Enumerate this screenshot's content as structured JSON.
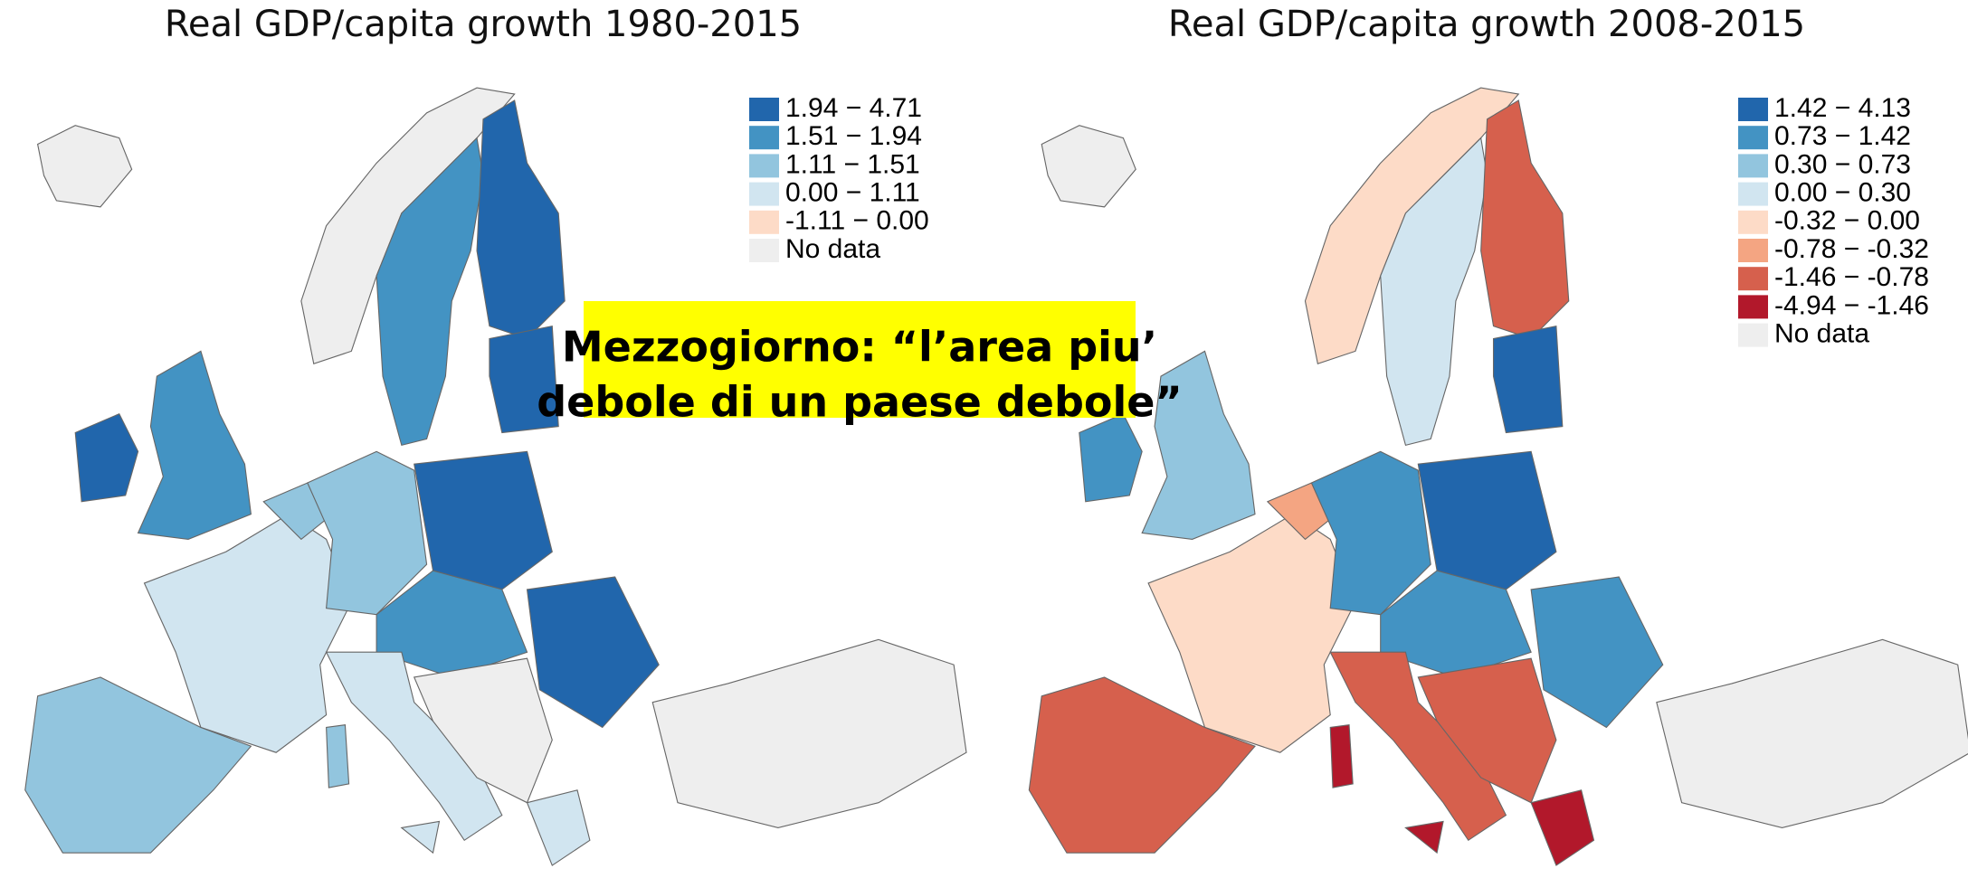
{
  "maps": [
    {
      "title": "Real GDP/capita growth 1980-2015",
      "legend": [
        {
          "label": "1.94 − 4.71",
          "color": "#2166ac"
        },
        {
          "label": "1.51 − 1.94",
          "color": "#4393c3"
        },
        {
          "label": "1.11 − 1.51",
          "color": "#92c5de"
        },
        {
          "label": "0.00 − 1.11",
          "color": "#d1e5f0"
        },
        {
          "label": "-1.11 − 0.00",
          "color": "#fddbc7"
        },
        {
          "label": "No data",
          "color": "#eeeeee"
        }
      ]
    },
    {
      "title": "Real GDP/capita growth 2008-2015",
      "legend": [
        {
          "label": "1.42 − 4.13",
          "color": "#2166ac"
        },
        {
          "label": "0.73 − 1.42",
          "color": "#4393c3"
        },
        {
          "label": "0.30 − 0.73",
          "color": "#92c5de"
        },
        {
          "label": "0.00 − 0.30",
          "color": "#d1e5f0"
        },
        {
          "label": "-0.32 − 0.00",
          "color": "#fddbc7"
        },
        {
          "label": "-0.78 − -0.32",
          "color": "#f4a582"
        },
        {
          "label": "-1.46 − -0.78",
          "color": "#d6604d"
        },
        {
          "label": "-4.94 − -1.46",
          "color": "#b2182b"
        },
        {
          "label": "No data",
          "color": "#eeeeee"
        }
      ]
    }
  ],
  "callout": {
    "lines": [
      "Mezzogiorno: “l’area piu’",
      "debole di un paese debole”"
    ]
  }
}
